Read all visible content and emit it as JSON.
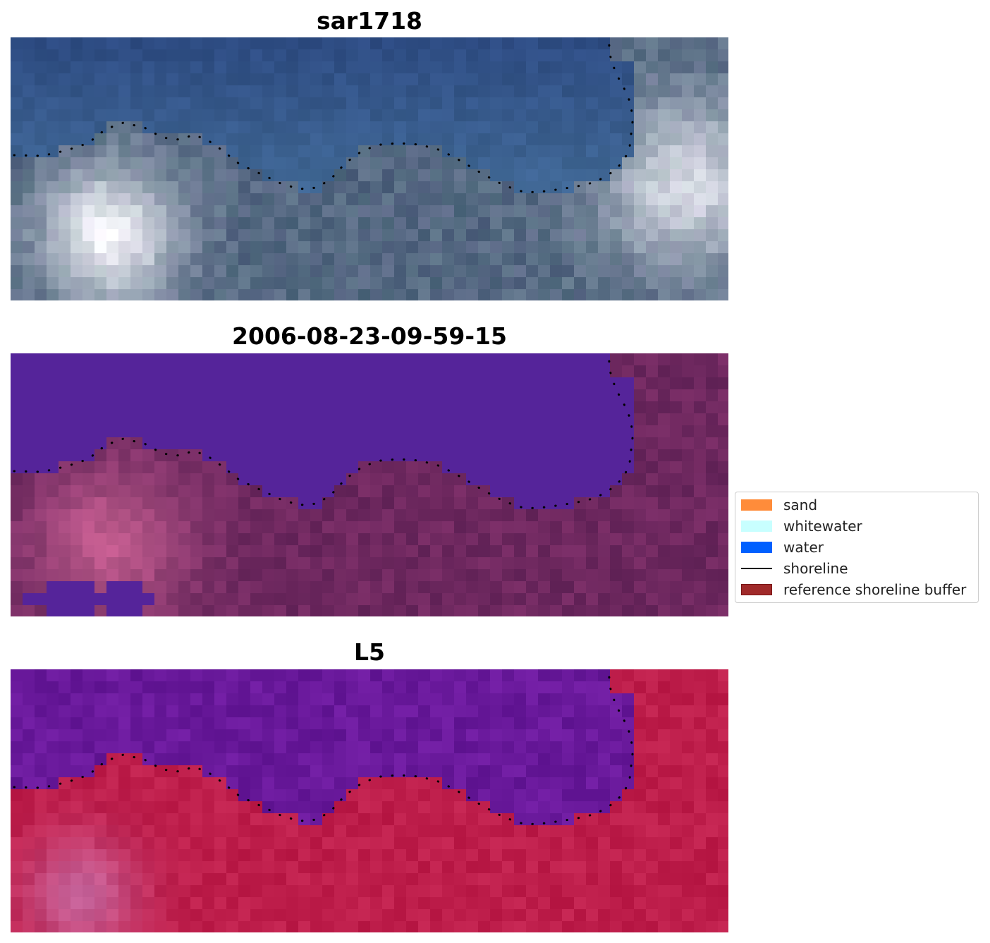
{
  "panels": [
    {
      "title": "sar1718",
      "style": "rgb"
    },
    {
      "title": "2006-08-23-09-59-15",
      "style": "classified"
    },
    {
      "title": "L5",
      "style": "index"
    }
  ],
  "legend": {
    "items": [
      {
        "label": "sand",
        "color": "#ff8c3a",
        "kind": "patch"
      },
      {
        "label": "whitewater",
        "color": "#c8ffff",
        "kind": "patch"
      },
      {
        "label": "water",
        "color": "#0060ff",
        "kind": "patch"
      },
      {
        "label": "shoreline",
        "color": "#000000",
        "kind": "line"
      },
      {
        "label": "reference shoreline buffer",
        "color": "#a02a2a",
        "kind": "patch"
      }
    ]
  },
  "colors": {
    "water_class": "#55249a",
    "land_rgb_dark": "#4a5f7d",
    "water_rgb": "#2f4f86",
    "index_water": "#6a1a9c",
    "index_land": "#c0184a"
  }
}
